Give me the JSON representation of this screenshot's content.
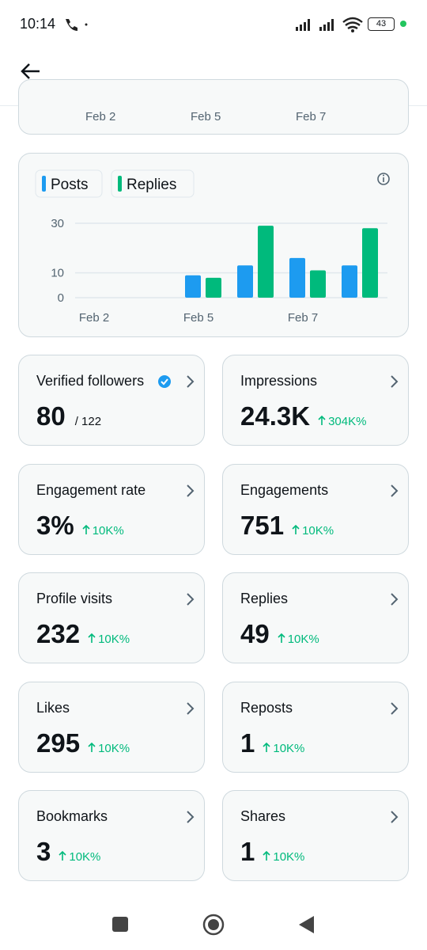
{
  "status_bar": {
    "time": "10:14",
    "battery": "43"
  },
  "previous_chart": {
    "categories": [
      "Feb 2",
      "Feb 5",
      "Feb 7"
    ]
  },
  "chart_data": {
    "type": "bar",
    "categories": [
      "Feb 2",
      null,
      "Feb 5",
      null,
      "Feb 7",
      null
    ],
    "series": [
      {
        "name": "Posts",
        "color": "#1d9bf0",
        "values": [
          0,
          0,
          9,
          13,
          16,
          13
        ]
      },
      {
        "name": "Replies",
        "color": "#00ba7c",
        "values": [
          0,
          0,
          8,
          29,
          11,
          28
        ]
      }
    ],
    "ylim": [
      0,
      30
    ],
    "yticks": [
      0,
      10,
      30
    ],
    "grid": true
  },
  "metrics": [
    {
      "title": "Verified followers",
      "value": "80",
      "total": "/ 122"
    },
    {
      "title": "Impressions",
      "value": "24.3K",
      "change": "304K%"
    },
    {
      "title": "Engagement rate",
      "value": "3%",
      "change": "10K%"
    },
    {
      "title": "Engagements",
      "value": "751",
      "change": "10K%"
    },
    {
      "title": "Profile visits",
      "value": "232",
      "change": "10K%"
    },
    {
      "title": "Replies",
      "value": "49",
      "change": "10K%"
    },
    {
      "title": "Likes",
      "value": "295",
      "change": "10K%"
    },
    {
      "title": "Reposts",
      "value": "1",
      "change": "10K%"
    },
    {
      "title": "Bookmarks",
      "value": "3",
      "change": "10K%"
    },
    {
      "title": "Shares",
      "value": "1",
      "change": "10K%"
    }
  ]
}
